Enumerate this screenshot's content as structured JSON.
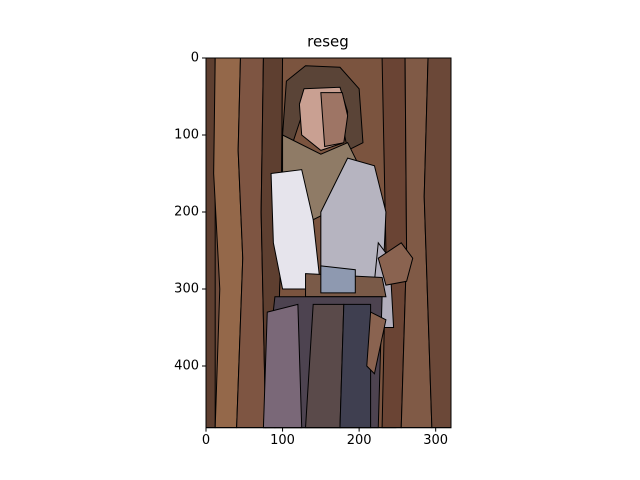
{
  "chart_data": {
    "type": "image",
    "title": "reseg",
    "xlim": [
      0,
      320
    ],
    "ylim": [
      480,
      0
    ],
    "xticks": [
      0,
      100,
      200,
      300
    ],
    "yticks": [
      0,
      100,
      200,
      300,
      400
    ]
  }
}
